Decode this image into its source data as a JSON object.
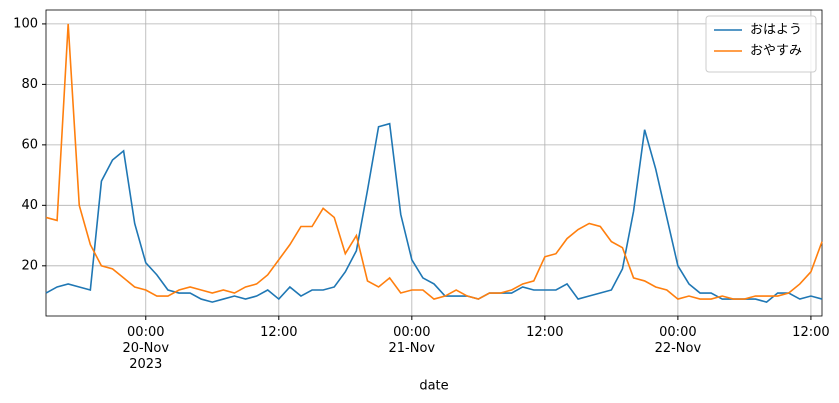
{
  "chart_data": {
    "type": "line",
    "x": [
      "2023-11-19 15:00",
      "2023-11-19 16:00",
      "2023-11-19 17:00",
      "2023-11-19 18:00",
      "2023-11-19 19:00",
      "2023-11-19 20:00",
      "2023-11-19 21:00",
      "2023-11-19 22:00",
      "2023-11-19 23:00",
      "2023-11-20 00:00",
      "2023-11-20 01:00",
      "2023-11-20 02:00",
      "2023-11-20 03:00",
      "2023-11-20 04:00",
      "2023-11-20 05:00",
      "2023-11-20 06:00",
      "2023-11-20 07:00",
      "2023-11-20 08:00",
      "2023-11-20 09:00",
      "2023-11-20 10:00",
      "2023-11-20 11:00",
      "2023-11-20 12:00",
      "2023-11-20 13:00",
      "2023-11-20 14:00",
      "2023-11-20 15:00",
      "2023-11-20 16:00",
      "2023-11-20 17:00",
      "2023-11-20 18:00",
      "2023-11-20 19:00",
      "2023-11-20 20:00",
      "2023-11-20 21:00",
      "2023-11-20 22:00",
      "2023-11-20 23:00",
      "2023-11-21 00:00",
      "2023-11-21 01:00",
      "2023-11-21 02:00",
      "2023-11-21 03:00",
      "2023-11-21 04:00",
      "2023-11-21 05:00",
      "2023-11-21 06:00",
      "2023-11-21 07:00",
      "2023-11-21 08:00",
      "2023-11-21 09:00",
      "2023-11-21 10:00",
      "2023-11-21 11:00",
      "2023-11-21 12:00",
      "2023-11-21 13:00",
      "2023-11-21 14:00",
      "2023-11-21 15:00",
      "2023-11-21 16:00",
      "2023-11-21 17:00",
      "2023-11-21 18:00",
      "2023-11-21 19:00",
      "2023-11-21 20:00",
      "2023-11-21 21:00",
      "2023-11-21 22:00",
      "2023-11-21 23:00",
      "2023-11-22 00:00",
      "2023-11-22 01:00",
      "2023-11-22 02:00",
      "2023-11-22 03:00",
      "2023-11-22 04:00",
      "2023-11-22 05:00",
      "2023-11-22 06:00",
      "2023-11-22 07:00",
      "2023-11-22 08:00",
      "2023-11-22 09:00",
      "2023-11-22 10:00",
      "2023-11-22 11:00",
      "2023-11-22 12:00",
      "2023-11-22 13:00"
    ],
    "series": [
      {
        "name": "おはよう",
        "color": "#1f77b4",
        "values": [
          11,
          13,
          14,
          13,
          12,
          48,
          55,
          58,
          34,
          21,
          17,
          12,
          11,
          11,
          9,
          8,
          9,
          10,
          9,
          10,
          12,
          9,
          13,
          10,
          12,
          12,
          13,
          18,
          25,
          45,
          66,
          67,
          37,
          22,
          16,
          14,
          10,
          10,
          10,
          9,
          11,
          11,
          11,
          13,
          12,
          12,
          12,
          14,
          9,
          10,
          11,
          12,
          19,
          38,
          65,
          52,
          36,
          20,
          14,
          11,
          11,
          9,
          9,
          9,
          9,
          8,
          11,
          11,
          9,
          10,
          9
        ]
      },
      {
        "name": "おやすみ",
        "color": "#ff7f0e",
        "values": [
          36,
          35,
          100,
          40,
          27,
          20,
          19,
          16,
          13,
          12,
          10,
          10,
          12,
          13,
          12,
          11,
          12,
          11,
          13,
          14,
          17,
          22,
          27,
          33,
          33,
          39,
          36,
          24,
          30,
          15,
          13,
          16,
          11,
          12,
          12,
          9,
          10,
          12,
          10,
          9,
          11,
          11,
          12,
          14,
          15,
          23,
          24,
          29,
          32,
          34,
          33,
          28,
          26,
          16,
          15,
          13,
          12,
          9,
          10,
          9,
          9,
          10,
          9,
          9,
          10,
          10,
          10,
          11,
          14,
          18,
          28
        ]
      }
    ],
    "x_label": "date",
    "xlim": [
      "2023-11-19 15:00",
      "2023-11-22 13:00"
    ],
    "xticks": [
      {
        "value": "2023-11-20 00:00",
        "label": "00:00\n20-Nov\n2023"
      },
      {
        "value": "2023-11-20 12:00",
        "label": "12:00"
      },
      {
        "value": "2023-11-21 00:00",
        "label": "00:00\n21-Nov"
      },
      {
        "value": "2023-11-21 12:00",
        "label": "12:00"
      },
      {
        "value": "2023-11-22 00:00",
        "label": "00:00\n22-Nov"
      },
      {
        "value": "2023-11-22 12:00",
        "label": "12:00"
      }
    ],
    "ylim": [
      3.4,
      104.6
    ],
    "yticks": [
      20,
      40,
      60,
      80,
      100
    ],
    "grid": true,
    "legend": "upper right"
  }
}
